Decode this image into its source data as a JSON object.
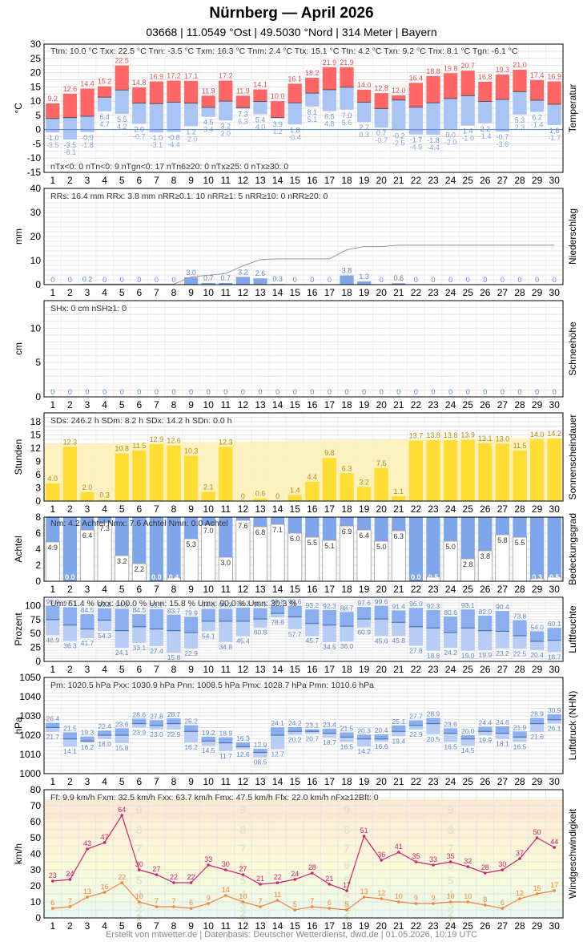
{
  "header": {
    "title": "Nürnberg  —  April 2026",
    "subtitle": "03668  |  11.0549 °Ost  |  49.5030 °Nord  |  314 Meter  |  Bayern"
  },
  "footer": "Erstellt von mtwetter.de | Datenbasis: Deutscher Wetterdienst, dwd.de | 01.05.2026, 10:19 UTC",
  "colors": {
    "tmax": "#ff6666",
    "tmax_label": "#e05050",
    "tmin": "#aac4f5",
    "tmin_label": "#6f94d8",
    "rain": "#7fa6ea",
    "rain_cumulative": "#9a9a9a",
    "sun": "#ffdd33",
    "sun_possible": "#fdf1c0",
    "cloud": "#7fa6ea",
    "humidity": "#7fa6ea",
    "pressure": "#7fa6ea",
    "wind_max": "#d42072",
    "wind_avg": "#f08440",
    "label_blue": "#5c86cc"
  },
  "chart_data": [
    {
      "type": "bar",
      "name": "temperature",
      "ylabel": "°C",
      "side_label": "Temperatur",
      "days": [
        1,
        2,
        3,
        4,
        5,
        6,
        7,
        8,
        9,
        10,
        11,
        12,
        13,
        14,
        15,
        16,
        17,
        18,
        19,
        20,
        21,
        22,
        23,
        24,
        25,
        26,
        27,
        28,
        29,
        30
      ],
      "ylim": [
        -15,
        30
      ],
      "yticks": [
        -15,
        -10,
        -5,
        0,
        5,
        10,
        15,
        20,
        25,
        30
      ],
      "tmax": [
        9.2,
        12.6,
        14.4,
        15.2,
        22.5,
        14.8,
        16.9,
        17.2,
        17.1,
        11.9,
        17.2,
        11.9,
        14.1,
        10.0,
        16.1,
        18.2,
        21.9,
        21.9,
        14.0,
        12.8,
        12.0,
        16.4,
        18.8,
        19.8,
        20.7,
        16.8,
        19.3,
        21.0,
        17.4,
        16.9
      ],
      "tmean": [
        3.9,
        4.2,
        4.7,
        11.4,
        13.9,
        9.3,
        9.1,
        9.6,
        9.3,
        7.8,
        10.0,
        7.7,
        9.9,
        4.3,
        9.4,
        12.8,
        14.0,
        14.9,
        9.6,
        7.4,
        10.4,
        7.9,
        9.4,
        10.9,
        11.9,
        9.9,
        10.6,
        13.3,
        10.3,
        8.9
      ],
      "tmin": [
        -1.0,
        -3.5,
        -0.9,
        6.4,
        5.5,
        2.0,
        -1.0,
        -0.8,
        1.2,
        4.5,
        3.2,
        7.3,
        5.4,
        3.9,
        1.8,
        8.1,
        6.5,
        7.0,
        2.7,
        0.7,
        -0.2,
        -1.7,
        -1.8,
        0.0,
        1.4,
        2.2,
        -0.7,
        5.3,
        6.2,
        1.6
      ],
      "tgn": [
        -3.5,
        -6.1,
        -1.8,
        4.7,
        4.2,
        -0.7,
        -3.1,
        -4.4,
        -2.0,
        3.4,
        2.0,
        6.3,
        4.0,
        1.2,
        -0.4,
        5.1,
        4.8,
        5.6,
        0.3,
        -0.7,
        -2.5,
        -4.9,
        -4.4,
        -2.0,
        -1.0,
        -1.4,
        -3.6,
        2.3,
        -1.4,
        -1.7
      ],
      "stats": [
        "Ttm: 10.0 °C",
        "Txx: 22.5 °C",
        "Tnn: -3.5 °C",
        "Txm: 16.3 °C",
        "Tnm: 2.4 °C",
        "Ttx: 15.1 °C",
        "Ttn: 4.2 °C",
        "Txn: 9.2 °C",
        "Tnx: 8.1 °C",
        "Tgn: -6.1 °C"
      ],
      "counts": [
        "nTx<0: 0",
        "nTn<0: 9",
        "nTgn<0: 17",
        "nTn6≥20: 0",
        "nTx≥25: 0",
        "nTx≥30: 0"
      ]
    },
    {
      "type": "bar",
      "name": "precipitation",
      "ylabel": "mm",
      "side_label": "Niederschlag",
      "ylim": [
        0,
        40
      ],
      "yticks": [
        0,
        10,
        20,
        30,
        40
      ],
      "values": [
        0,
        0,
        0.2,
        0,
        0,
        0,
        0,
        0,
        3.0,
        0.7,
        0.7,
        3.2,
        2.6,
        0.3,
        0,
        0,
        0,
        3.8,
        1.3,
        0,
        0.6,
        0,
        0,
        0,
        0,
        0,
        0,
        0,
        0,
        0
      ],
      "labels": [
        "0",
        "0",
        "0.2",
        "0",
        "0",
        "0",
        "0",
        "0",
        "3.0",
        "0.7",
        "0.7",
        "3.2",
        "2.6",
        "0.3",
        "0",
        "0",
        "0",
        "3.8",
        "1.3",
        "0",
        "0.6",
        "0",
        "0",
        "0",
        "0",
        "0",
        "0",
        "0",
        "0",
        "0"
      ],
      "cumulative_line": "Monatssumme kumuliert",
      "stats": [
        "RRs: 16.4 mm",
        "RRx: 3.8 mm",
        "nRR≥0.1: 10",
        "nRR≥1: 5",
        "nRR≥10: 0",
        "nRR≥20: 0"
      ]
    },
    {
      "type": "bar",
      "name": "snow",
      "ylabel": "cm",
      "side_label": "Schneehöhe",
      "ylim": [
        0,
        14
      ],
      "yticks": [
        0,
        5,
        10
      ],
      "values": [
        0,
        0,
        0,
        0,
        0,
        0,
        0,
        0,
        0,
        0,
        0,
        0,
        0,
        0,
        0,
        0,
        0,
        0,
        0,
        0,
        0,
        0,
        0,
        0,
        0,
        0,
        0,
        0,
        0,
        0
      ],
      "stats": [
        "SHx: 0 cm",
        "nSH≥1: 0"
      ]
    },
    {
      "type": "bar",
      "name": "sunshine",
      "ylabel": "Stunden",
      "side_label": "Sonnenscheindauer",
      "ylim": [
        0,
        20
      ],
      "yticks": [
        0,
        3,
        6,
        9,
        12,
        15,
        18
      ],
      "values": [
        4.0,
        12.3,
        2.0,
        0.3,
        10.8,
        11.5,
        12.9,
        12.6,
        10.3,
        2.1,
        12.3,
        0,
        0.6,
        0,
        1.4,
        4.4,
        9.8,
        6.3,
        3.2,
        7.5,
        1.1,
        13.7,
        13.8,
        13.8,
        13.9,
        13.1,
        13.0,
        11.5,
        14.0,
        14.2
      ],
      "possible": [
        13.0,
        13.0,
        13.1,
        13.1,
        13.2,
        13.2,
        13.3,
        13.3,
        13.4,
        13.4,
        13.5,
        13.5,
        13.6,
        13.6,
        13.7,
        13.7,
        13.8,
        13.8,
        13.9,
        13.9,
        14.0,
        14.0,
        14.1,
        14.1,
        14.2,
        14.2,
        14.3,
        14.3,
        14.4,
        14.4
      ],
      "labels": [
        "4.0",
        "12.3",
        "2.0",
        "0.3",
        "10.8",
        "11.5",
        "12.9",
        "12.6",
        "10.3",
        "2.1",
        "12.3",
        "0",
        "0.6",
        "0",
        "1.4",
        "4.4",
        "9.8",
        "6.3",
        "3.2",
        "7.5",
        "1.1",
        "13.7",
        "13.8",
        "13.8",
        "13.9",
        "13.1",
        "13.0",
        "11.5",
        "14.0",
        "14.2"
      ],
      "stats": [
        "SDs: 246.2 h",
        "SDm: 8.2 h",
        "SDx: 14.2 h",
        "SDn: 0.0 h"
      ]
    },
    {
      "type": "bar",
      "name": "cloud_cover",
      "ylabel": "Achtel",
      "side_label": "Bedeckungsgrad",
      "ylim": [
        0,
        8
      ],
      "yticks": [
        0,
        2,
        4,
        6,
        8
      ],
      "values": [
        4.9,
        0.0,
        6.4,
        7.3,
        3.2,
        2.2,
        0.0,
        0.4,
        5.3,
        7.0,
        3.0,
        7.6,
        6.8,
        7.1,
        6.0,
        5.5,
        5.1,
        6.9,
        6.4,
        5.0,
        6.3,
        0.0,
        0.5,
        5.0,
        2.8,
        3.8,
        5.8,
        5.5,
        0.3,
        0.5
      ],
      "labels": [
        "4.9",
        "0.0",
        "6.4",
        "7.3",
        "3.2",
        "2.2",
        "0.0",
        "0.4",
        "5.3",
        "7.0",
        "3.0",
        "7.6",
        "6.8",
        "7.1",
        "6.0",
        "5.5",
        "5.1",
        "6.9",
        "6.4",
        "5.0",
        "6.3",
        "0.0",
        "0.5",
        "5.0",
        "2.8",
        "3.8",
        "5.8",
        "5.5",
        "0.3",
        "0.5"
      ],
      "stats": [
        "Nm: 4.2 Achtel",
        "Nmx: 7.6 Achtel",
        "Nmn: 0.0 Achtel"
      ]
    },
    {
      "type": "bar",
      "name": "humidity",
      "ylabel": "Prozent",
      "side_label": "Luftfeuchte",
      "ylim": [
        0,
        115
      ],
      "yticks": [
        0,
        25,
        50,
        75,
        100
      ],
      "max": [
        99.9,
        97.1,
        84.5,
        95.2,
        94.3,
        84.5,
        93.7,
        83.7,
        79.9,
        94.0,
        94.3,
        96.2,
        95.5,
        99.8,
        99.6,
        93.2,
        92.3,
        88.7,
        97.6,
        99.6,
        91.4,
        96.0,
        92.3,
        80.6,
        93.1,
        82.0,
        90.4,
        73.8,
        54.0,
        60.1
      ],
      "mean": [
        75,
        65,
        58,
        74,
        55,
        62,
        58,
        55,
        52,
        72,
        72,
        72,
        76,
        86,
        80,
        68,
        65,
        63,
        76,
        76,
        70,
        62,
        60,
        52,
        60,
        55,
        54,
        46,
        36,
        38
      ],
      "min": [
        46.9,
        36.3,
        41.7,
        54.3,
        24.1,
        33.1,
        27.4,
        15.8,
        22.9,
        54.1,
        34.8,
        45.4,
        60.8,
        78.8,
        57.7,
        45.7,
        34.5,
        36.0,
        60.9,
        45.6,
        45.8,
        27.8,
        18.8,
        24.2,
        19.0,
        19.9,
        23.2,
        22.5,
        20.4,
        16.7
      ],
      "max_labels": [
        "99.9",
        "97.1",
        "84.5",
        "95.2",
        "94.3",
        "84.5",
        "93.7",
        "83.7",
        "79.9",
        "94.0",
        "94.3",
        "96.2",
        "95.5",
        "99.8",
        "99.6",
        "93.2",
        "92.3",
        "88.7",
        "97.6",
        "99.6",
        "91.4",
        "96.0",
        "92.3",
        "80.6",
        "93.1",
        "82.0",
        "90.4",
        "73.8",
        "54.0",
        "60.1"
      ],
      "min_labels": [
        "46.9",
        "36.3",
        "41.7",
        "54.3",
        "24.1",
        "33.1",
        "27.4",
        "15.8",
        "22.9",
        "54.1",
        "34.8",
        "45.4",
        "60.8",
        "78.8",
        "57.7",
        "45.7",
        "34.5",
        "36.0",
        "60.9",
        "45.6",
        "45.8",
        "27.8",
        "18.8",
        "24.2",
        "19.0",
        "19.9",
        "23.2",
        "22.5",
        "20.4",
        "16.7"
      ],
      "stats": [
        "Um: 61.4 %",
        "Uxx: 100.0 %",
        "Unn: 15.8 %",
        "Umx: 90.0 %",
        "Umn: 30.3 %"
      ]
    },
    {
      "type": "bar",
      "name": "pressure",
      "ylabel": "hPa",
      "side_label": "Luftdruck (NHN)",
      "ylim": [
        1000,
        1050
      ],
      "yticks": [
        1000,
        1010,
        1020,
        1030,
        1040,
        1050
      ],
      "max": [
        1026.4,
        1021.5,
        1019.3,
        1022.4,
        1023.6,
        1028.6,
        1027.8,
        1028.7,
        1025.2,
        1019.2,
        1018.9,
        1016.3,
        1012.9,
        1024.1,
        1024.2,
        1023.1,
        1023.4,
        1021.5,
        1020.3,
        1020.4,
        1025.1,
        1027.7,
        1028.9,
        1023.6,
        1020.0,
        1024.4,
        1024.6,
        1021.9,
        1028.9,
        1030.9
      ],
      "mean": [
        1024,
        1018,
        1017,
        1020,
        1020,
        1026,
        1025,
        1026,
        1022,
        1017,
        1016,
        1014,
        1011,
        1020,
        1022,
        1022,
        1021,
        1019,
        1018,
        1018,
        1022,
        1025,
        1026,
        1021,
        1018,
        1022,
        1021,
        1019,
        1026,
        1028
      ],
      "min": [
        1021.7,
        1014.1,
        1016.2,
        1018.0,
        1015.8,
        1023.9,
        1023.0,
        1022.9,
        1016.2,
        1014.5,
        1011.7,
        1012.6,
        1008.5,
        1012.7,
        1020.2,
        1020.7,
        1018.7,
        1016.5,
        1014.2,
        1016.6,
        1019.4,
        1022.9,
        1020.5,
        1016.5,
        1014.5,
        1019.9,
        1018.1,
        1016.5,
        1021.6,
        1026.1
      ],
      "max_labels": [
        "26.4",
        "21.5",
        "19.3",
        "22.4",
        "23.6",
        "28.6",
        "27.8",
        "28.7",
        "25.2",
        "19.2",
        "18.9",
        "16.3",
        "12.9",
        "24.1",
        "24.2",
        "23.1",
        "23.4",
        "21.5",
        "20.3",
        "20.4",
        "25.1",
        "27.7",
        "28.9",
        "23.6",
        "20.0",
        "24.4",
        "24.6",
        "21.9",
        "28.9",
        "30.9"
      ],
      "min_labels": [
        "21.7",
        "14.1",
        "16.2",
        "18.0",
        "15.8",
        "23.9",
        "23.0",
        "22.9",
        "16.2",
        "14.5",
        "11.7",
        "12.6",
        "08.5",
        "12.7",
        "20.2",
        "20.7",
        "18.7",
        "16.5",
        "14.2",
        "16.6",
        "19.4",
        "22.9",
        "20.5",
        "16.5",
        "14.5",
        "19.9",
        "18.1",
        "16.5",
        "21.6",
        "26.1"
      ],
      "stats": [
        "Pm: 1020.5 hPa",
        "Pxx: 1030.9 hPa",
        "Pnn: 1008.5 hPa",
        "Pmx: 1028.7 hPa",
        "Pmn: 1010.6 hPa"
      ]
    },
    {
      "type": "line",
      "name": "wind",
      "ylabel": "km/h",
      "side_label": "Windgeschwindigkeit",
      "ylim": [
        0,
        80
      ],
      "yticks": [
        0,
        10,
        20,
        30,
        40,
        50,
        60,
        70,
        80
      ],
      "gusts": [
        23,
        24,
        43,
        47,
        64,
        30,
        27,
        22,
        22,
        33,
        30,
        27,
        21,
        22,
        24,
        28,
        21,
        17,
        51,
        36,
        41,
        35,
        33,
        35,
        32,
        28,
        30,
        37,
        50,
        44
      ],
      "mean": [
        6,
        7,
        13,
        16,
        22,
        10,
        7,
        7,
        6,
        9,
        14,
        10,
        7,
        11,
        5,
        7,
        6,
        5,
        13,
        12,
        10,
        9,
        9,
        10,
        10,
        8,
        6,
        12,
        15,
        17
      ],
      "beaufort_bands": [
        0,
        1,
        5,
        11,
        19,
        28,
        38,
        49,
        61,
        74
      ],
      "beaufort_labels": [
        "1",
        "2",
        "3",
        "4",
        "5",
        "6",
        "7",
        "8",
        "9"
      ],
      "stats": [
        "Ff: 9.9 km/h",
        "Fxm: 32.5 km/h",
        "Fxx: 63.7 km/h",
        "Fmx: 47.5 km/h",
        "Ffx: 22.0 km/h",
        "nFx≥12Bft: 0"
      ]
    }
  ]
}
